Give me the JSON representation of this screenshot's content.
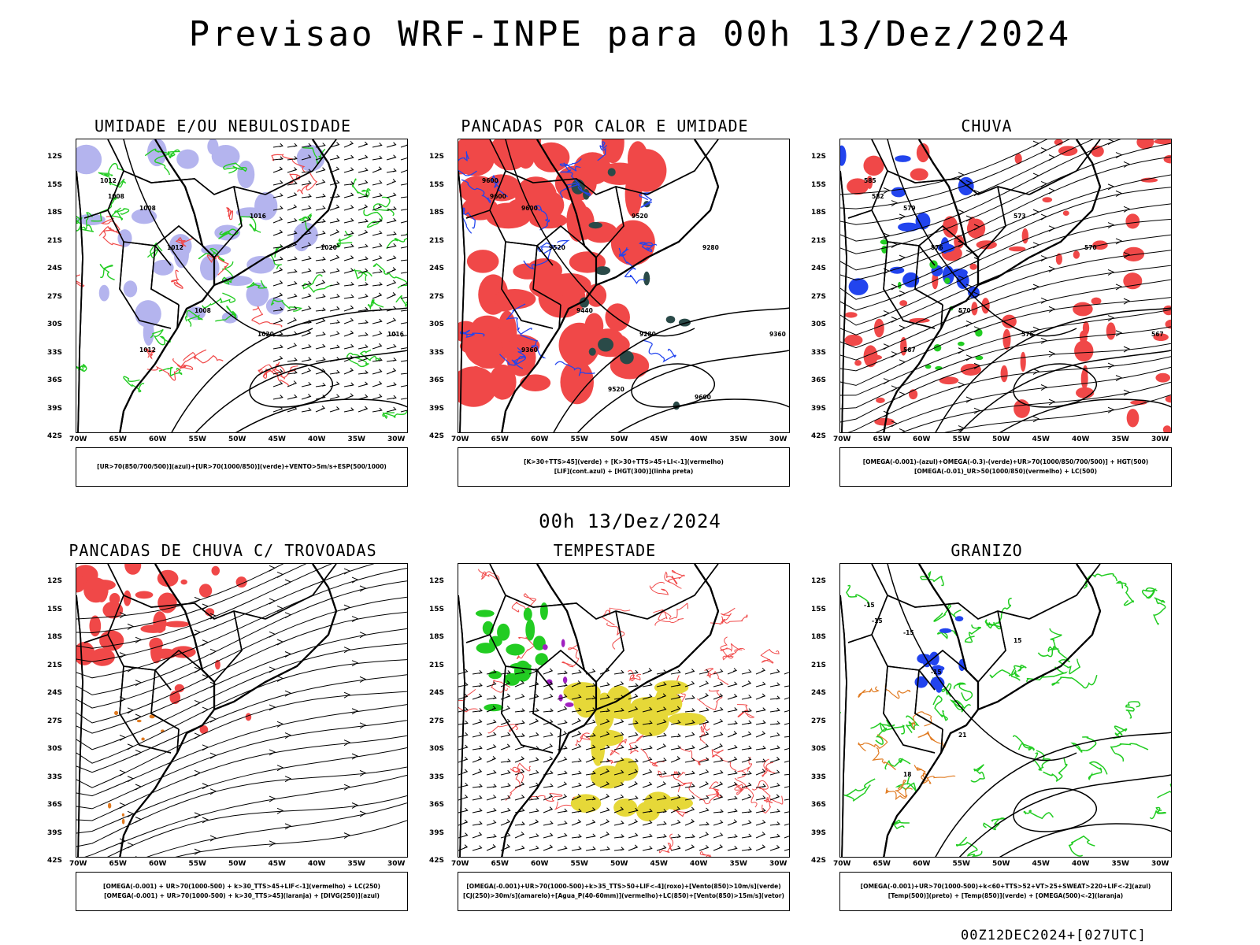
{
  "title": "Previsao WRF-INPE  para 00h 13/Dez/2024",
  "mid_title": "00h 13/Dez/2024",
  "footer": "00Z12DEC2024+[027UTC]",
  "lat_labels": [
    "12S",
    "15S",
    "18S",
    "21S",
    "24S",
    "27S",
    "30S",
    "33S",
    "36S",
    "39S",
    "42S"
  ],
  "lon_labels": [
    "70W",
    "65W",
    "60W",
    "55W",
    "50W",
    "45W",
    "40W",
    "35W",
    "30W"
  ],
  "colors": {
    "red": "#f04848",
    "green": "#22cc22",
    "blue": "#2244ee",
    "lavender": "#b4b4ee",
    "dark_teal": "#2a4a48",
    "yellow": "#e6d838",
    "purple": "#a020c0",
    "orange": "#e07a20",
    "black": "#000000"
  },
  "panels": [
    {
      "id": "umidade",
      "title": "UMIDADE E/OU NEBULOSIDADE",
      "legend": [
        "[UR>70(850/700/500)](azul)+[UR>70(1000/850)](verde)+VENTO>5m/s+ESP(500/1000)"
      ],
      "contour_labels": [
        "1012",
        "1008",
        "1008",
        "1012",
        "1016",
        "1008",
        "1012",
        "1020",
        "1020",
        "1016"
      ]
    },
    {
      "id": "pancadas-calor",
      "title": "PANCADAS POR CALOR E UMIDADE",
      "legend": [
        "[K>30+TTS>45](verde) + [K>30+TTS>45+LI<-1](vermelho)",
        "[LIF](cont.azul) + [HGT(300)](linha preta)"
      ],
      "contour_labels": [
        "9600",
        "9600",
        "9600",
        "9520",
        "9520",
        "9440",
        "9360",
        "9280",
        "9280",
        "9360",
        "9600",
        "9520"
      ]
    },
    {
      "id": "chuva",
      "title": "CHUVA",
      "legend": [
        "[OMEGA(-0.001)-(azul)+OMEGA(-0.3)-(verde)+UR>70(1000/850/700/500)] + HGT(500)",
        "[OMEGA(-0.01)_UR>50(1000/850)(vermelho) + LC(500)"
      ],
      "contour_labels": [
        "585",
        "582",
        "579",
        "576",
        "573",
        "570",
        "567",
        "576",
        "570",
        "567"
      ]
    },
    {
      "id": "pancadas-trovoadas",
      "title": "PANCADAS DE CHUVA C/ TROVOADAS",
      "legend": [
        "[OMEGA(-0.001) + UR>70(1000-500) + k>30_TTS>45+LIF<-1](vermelho) + LC(250)",
        "[OMEGA(-0.001) + UR>70(1000-500) + k>30_TTS>45](laranja) + [DIVG(250)](azul)"
      ],
      "contour_labels": []
    },
    {
      "id": "tempestade",
      "title": "TEMPESTADE",
      "legend": [
        "[OMEGA(-0.001)+UR>70(1000-500)+k>35_TTS>50+LIF<-4](roxo)+[Vento(850)>10m/s](verde)",
        "[CJ(250)>30m/s](amarelo)+[Agua_P(40-60mm)](vermelho)+LC(850)+[Vento(850)>15m/s](vetor)"
      ],
      "contour_labels": []
    },
    {
      "id": "granizo",
      "title": "GRANIZO",
      "legend": [
        "[OMEGA(-0.001)+UR>70(1000-500)+k<60+TTS>52+VT>25+SWEAT>220+LIF<-2](azul)",
        "[Temp(500)](preto) + [Temp(850)](verde) + [OMEGA(500)<-2](laranja)"
      ],
      "contour_labels": [
        "-15",
        "-15",
        "-15",
        "-15",
        "15",
        "21",
        "18"
      ]
    }
  ]
}
